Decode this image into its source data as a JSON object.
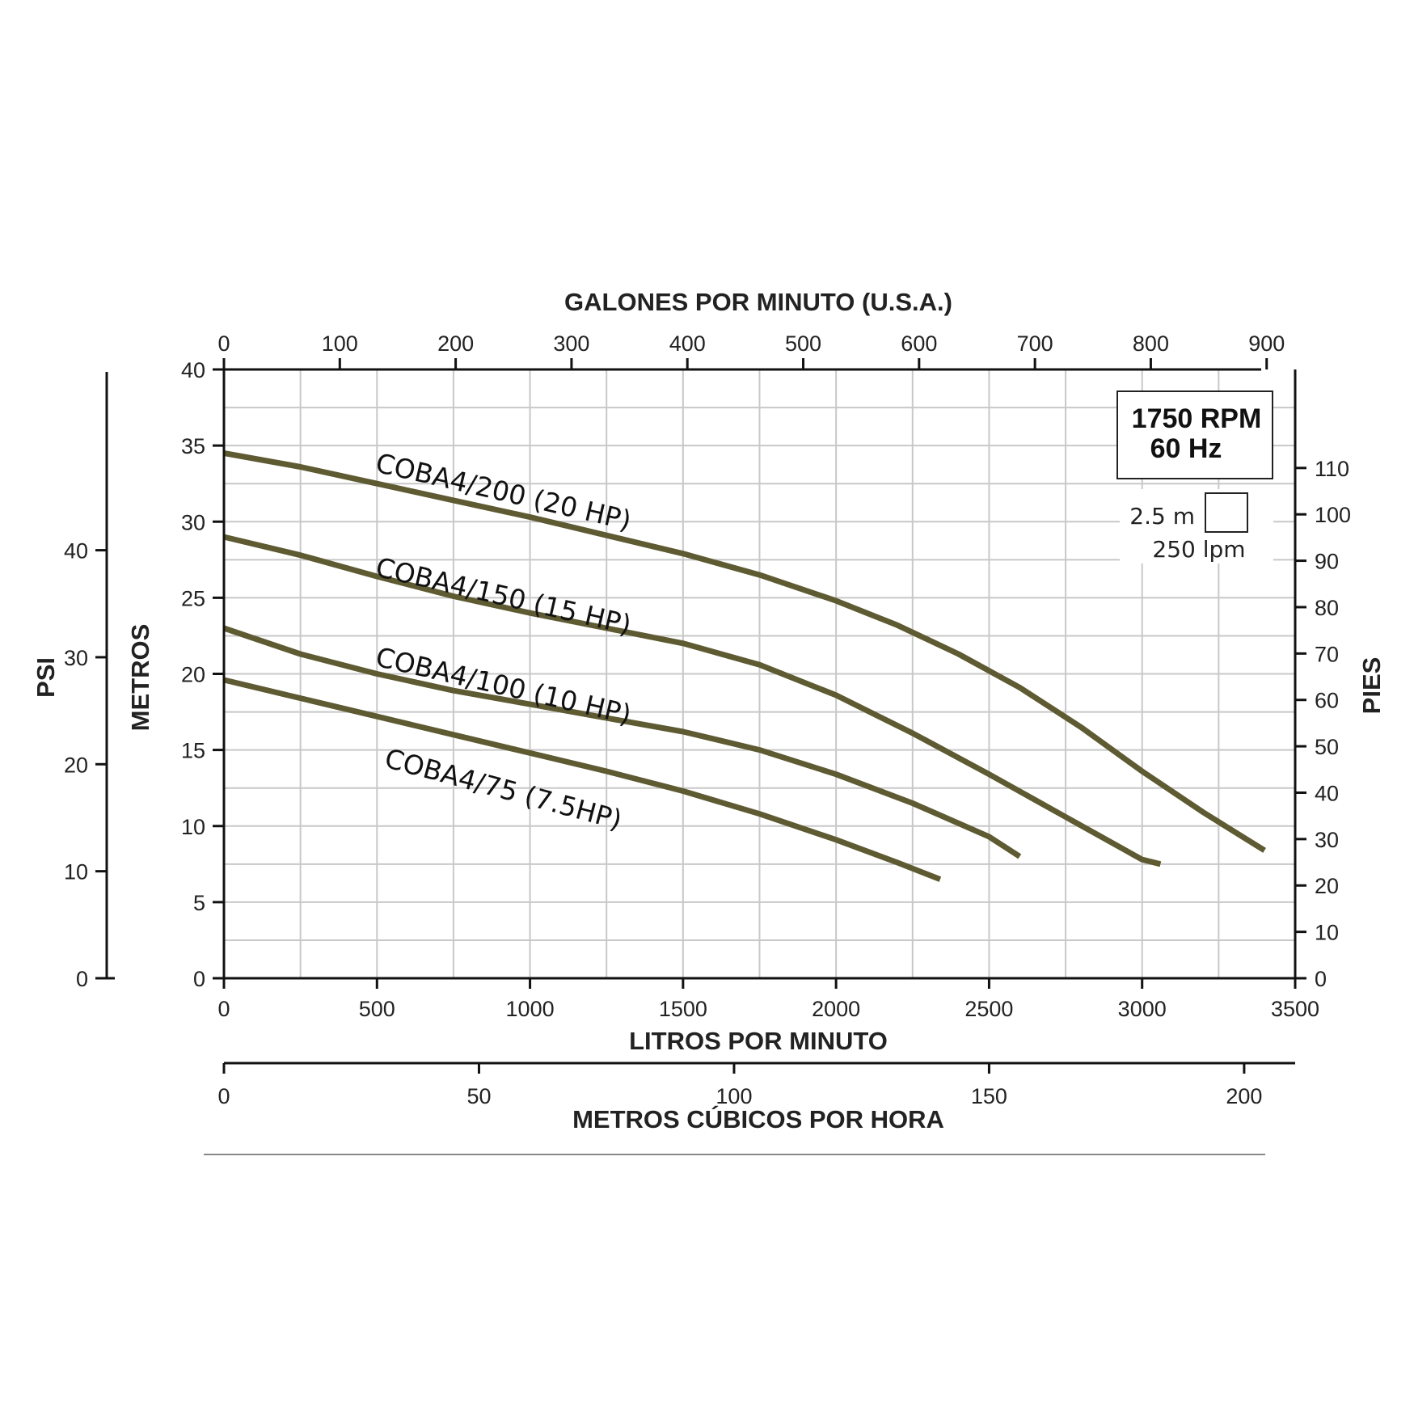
{
  "chart_data": {
    "type": "line",
    "x": {
      "title": "LITROS POR MINUTO",
      "range": [
        0,
        3500
      ],
      "ticks": [
        0,
        500,
        1000,
        1500,
        2000,
        2500,
        3000,
        3500
      ]
    },
    "x_top": {
      "title": "GALONES POR MINUTO (U.S.A.)",
      "ticks": [
        0,
        100,
        200,
        300,
        400,
        500,
        600,
        700,
        800,
        900
      ]
    },
    "x_bottom2": {
      "title": "METROS CÚBICOS POR HORA",
      "ticks": [
        0,
        50,
        100,
        150,
        200
      ]
    },
    "y": {
      "title": "METROS",
      "range": [
        0,
        40
      ],
      "ticks": [
        0,
        5,
        10,
        15,
        20,
        25,
        30,
        35,
        40
      ]
    },
    "y_psi": {
      "title": "PSI",
      "ticks": [
        0,
        10,
        20,
        30,
        40
      ]
    },
    "y_right": {
      "title": "PIES",
      "ticks": [
        0,
        10,
        20,
        30,
        40,
        50,
        60,
        70,
        80,
        90,
        100,
        110
      ]
    },
    "info_box": {
      "line1": "1750 RPM",
      "line2": "60 Hz"
    },
    "grid_scale": {
      "vertical": "2.5 m",
      "horizontal": "250 lpm"
    },
    "series_color": "#5e5a32",
    "series": [
      {
        "name": "COBA4/200 (20 HP)",
        "points": [
          [
            0,
            34.5
          ],
          [
            250,
            33.6
          ],
          [
            500,
            32.5
          ],
          [
            750,
            31.4
          ],
          [
            1000,
            30.3
          ],
          [
            1250,
            29.1
          ],
          [
            1500,
            27.9
          ],
          [
            1750,
            26.5
          ],
          [
            2000,
            24.8
          ],
          [
            2200,
            23.2
          ],
          [
            2400,
            21.3
          ],
          [
            2600,
            19.1
          ],
          [
            2800,
            16.5
          ],
          [
            3000,
            13.6
          ],
          [
            3200,
            10.9
          ],
          [
            3400,
            8.4
          ]
        ]
      },
      {
        "name": "COBA4/150 (15 HP)",
        "points": [
          [
            0,
            29.0
          ],
          [
            250,
            27.8
          ],
          [
            500,
            26.4
          ],
          [
            750,
            25.1
          ],
          [
            1000,
            24.0
          ],
          [
            1250,
            23.0
          ],
          [
            1500,
            22.0
          ],
          [
            1750,
            20.6
          ],
          [
            2000,
            18.6
          ],
          [
            2250,
            16.1
          ],
          [
            2500,
            13.4
          ],
          [
            2750,
            10.6
          ],
          [
            3000,
            7.8
          ],
          [
            3060,
            7.5
          ]
        ]
      },
      {
        "name": "COBA4/100 (10 HP)",
        "points": [
          [
            0,
            23.0
          ],
          [
            250,
            21.3
          ],
          [
            500,
            20.0
          ],
          [
            750,
            18.9
          ],
          [
            1000,
            18.0
          ],
          [
            1250,
            17.1
          ],
          [
            1500,
            16.2
          ],
          [
            1750,
            15.0
          ],
          [
            2000,
            13.4
          ],
          [
            2250,
            11.5
          ],
          [
            2500,
            9.3
          ],
          [
            2600,
            8.0
          ]
        ]
      },
      {
        "name": "COBA4/75 (7.5HP)",
        "points": [
          [
            0,
            19.6
          ],
          [
            250,
            18.4
          ],
          [
            500,
            17.2
          ],
          [
            750,
            16.0
          ],
          [
            1000,
            14.8
          ],
          [
            1250,
            13.6
          ],
          [
            1500,
            12.3
          ],
          [
            1750,
            10.8
          ],
          [
            2000,
            9.1
          ],
          [
            2200,
            7.6
          ],
          [
            2340,
            6.5
          ]
        ]
      }
    ]
  }
}
